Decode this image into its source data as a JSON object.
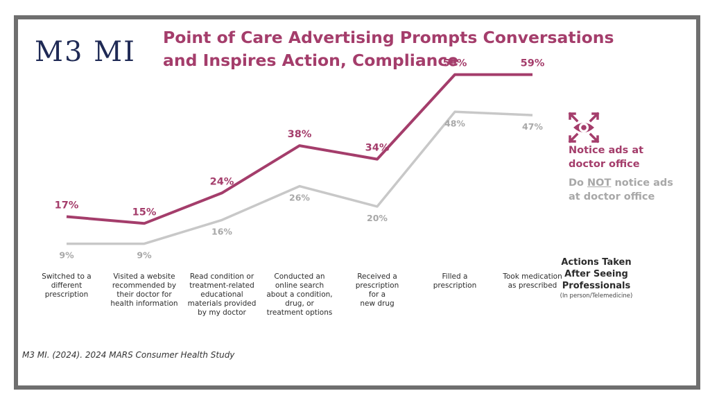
{
  "logo": "M3 MI",
  "title_line1": "Point of Care Advertising Prompts Conversations",
  "title_line2": "and Inspires Action, Compliance",
  "source": "M3 MI. (2024). 2024 MARS Consumer Health Study",
  "legend": {
    "icon": "eye-focus-icon",
    "notice": "Notice ads at\ndoctor office",
    "do": "Do ",
    "not": "NOT",
    "notice_rest": " notice ads",
    "line2": "at doctor office"
  },
  "axis_title": "Actions Taken\nAfter Seeing\nProfessionals",
  "axis_subtitle": "(In person/Telemedicine)",
  "colors": {
    "accent": "#a43d6b",
    "gray": "#c8c8c8",
    "gray_label": "#a8a8a8",
    "frame": "#6f6f6f",
    "logo": "#1f2a55"
  },
  "chart_data": {
    "type": "line",
    "categories": [
      "Switched to a\ndifferent\nprescription",
      "Visited a website\nrecommended by\ntheir doctor for\nhealth information",
      "Read condition or\ntreatment-related\neducational\nmaterials provided\nby my doctor",
      "Conducted an\nonline search\nabout a condition,\ndrug, or\ntreatment options",
      "Received a\nprescription\nfor a\nnew drug",
      "Filled a\nprescription",
      "Took medication\nas prescribed"
    ],
    "series": [
      {
        "name": "Notice ads at doctor office",
        "values": [
          17,
          15,
          24,
          38,
          34,
          59,
          59
        ],
        "labels": [
          "17%",
          "15%",
          "24%",
          "38%",
          "34%",
          "59%",
          "59%"
        ]
      },
      {
        "name": "Do NOT notice ads at doctor office",
        "values": [
          9,
          9,
          16,
          26,
          20,
          48,
          47
        ],
        "labels": [
          "9%",
          "9%",
          "16%",
          "26%",
          "20%",
          "48%",
          "47%"
        ]
      }
    ],
    "xlabel": "Actions Taken After Seeing Professionals",
    "ylabel": "",
    "grid": false
  }
}
